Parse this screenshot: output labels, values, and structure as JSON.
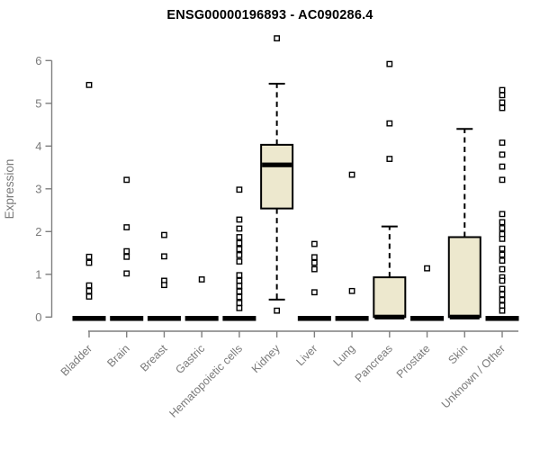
{
  "page": {
    "background": "#ffffff"
  },
  "chart_data": {
    "type": "boxplot",
    "title": "ENSG00000196893 - AC090286.4",
    "ylabel": "Expression",
    "xlabel": "",
    "ylim": [
      0,
      6.6
    ],
    "yticks": [
      0,
      1,
      2,
      3,
      4,
      5,
      6
    ],
    "grid": false,
    "legend": null,
    "categories": [
      "Bladder",
      "Brain",
      "Breast",
      "Gastric",
      "Hematopoietic cells",
      "Kidney",
      "Liver",
      "Lung",
      "Pancreas",
      "Prostate",
      "Skin",
      "Unknown / Other"
    ],
    "series": [
      {
        "category": "Bladder",
        "whisker_low": 0,
        "q1": 0,
        "median": 0,
        "q3": 0,
        "whisker_high": 0,
        "outliers": [
          5.43,
          1.41,
          1.27,
          0.74,
          0.61,
          0.48
        ]
      },
      {
        "category": "Brain",
        "whisker_low": 0,
        "q1": 0,
        "median": 0,
        "q3": 0,
        "whisker_high": 0,
        "outliers": [
          3.21,
          2.1,
          1.54,
          1.41,
          1.02
        ]
      },
      {
        "category": "Breast",
        "whisker_low": 0,
        "q1": 0,
        "median": 0,
        "q3": 0,
        "whisker_high": 0,
        "outliers": [
          1.92,
          1.42,
          0.85,
          0.75
        ]
      },
      {
        "category": "Gastric",
        "whisker_low": 0,
        "q1": 0,
        "median": 0,
        "q3": 0,
        "whisker_high": 0,
        "outliers": [
          0.88
        ]
      },
      {
        "category": "Hematopoietic cells",
        "whisker_low": 0,
        "q1": 0,
        "median": 0,
        "q3": 0,
        "whisker_high": 0,
        "outliers": [
          2.98,
          2.28,
          2.07,
          1.87,
          1.73,
          1.59,
          1.45,
          1.3,
          0.98,
          0.85,
          0.73,
          0.6,
          0.47,
          0.33,
          0.21
        ]
      },
      {
        "category": "Kidney",
        "whisker_low": 0.41,
        "q1": 2.54,
        "median": 3.56,
        "q3": 4.03,
        "whisker_high": 5.46,
        "outliers": [
          6.52,
          0.15
        ]
      },
      {
        "category": "Liver",
        "whisker_low": 0,
        "q1": 0,
        "median": 0,
        "q3": 0,
        "whisker_high": 0,
        "outliers": [
          1.71,
          1.4,
          1.27,
          1.12,
          0.58
        ]
      },
      {
        "category": "Lung",
        "whisker_low": 0,
        "q1": 0,
        "median": 0,
        "q3": 0,
        "whisker_high": 0,
        "outliers": [
          3.33,
          0.61
        ]
      },
      {
        "category": "Pancreas",
        "whisker_low": 0,
        "q1": 0,
        "median": 0,
        "q3": 0.93,
        "whisker_high": 2.12,
        "outliers": [
          5.92,
          4.53,
          3.7
        ]
      },
      {
        "category": "Prostate",
        "whisker_low": 0,
        "q1": 0,
        "median": 0,
        "q3": 0,
        "whisker_high": 0,
        "outliers": [
          1.14
        ]
      },
      {
        "category": "Skin",
        "whisker_low": 0,
        "q1": 0,
        "median": 0,
        "q3": 1.87,
        "whisker_high": 4.4,
        "outliers": []
      },
      {
        "category": "Unknown / Other",
        "whisker_low": 0,
        "q1": 0,
        "median": 0,
        "q3": 0,
        "whisker_high": 0,
        "outliers": [
          5.31,
          5.19,
          5.02,
          4.89,
          4.08,
          3.8,
          3.52,
          3.21,
          2.41,
          2.22,
          2.08,
          1.94,
          1.83,
          1.6,
          1.46,
          1.32,
          1.12,
          0.93,
          0.85,
          0.66,
          0.53,
          0.4,
          0.27,
          0.15
        ]
      }
    ],
    "colors": {
      "box_fill": "#EDE8CE",
      "box_border": "#000000",
      "median": "#000000",
      "whisker": "#000000",
      "outlier_stroke": "#000000",
      "axis": "#7F7F7F",
      "tick_label": "#7A7A7A",
      "axis_title": "#7A7A7A",
      "title": "#000000",
      "background": "#ffffff"
    }
  }
}
